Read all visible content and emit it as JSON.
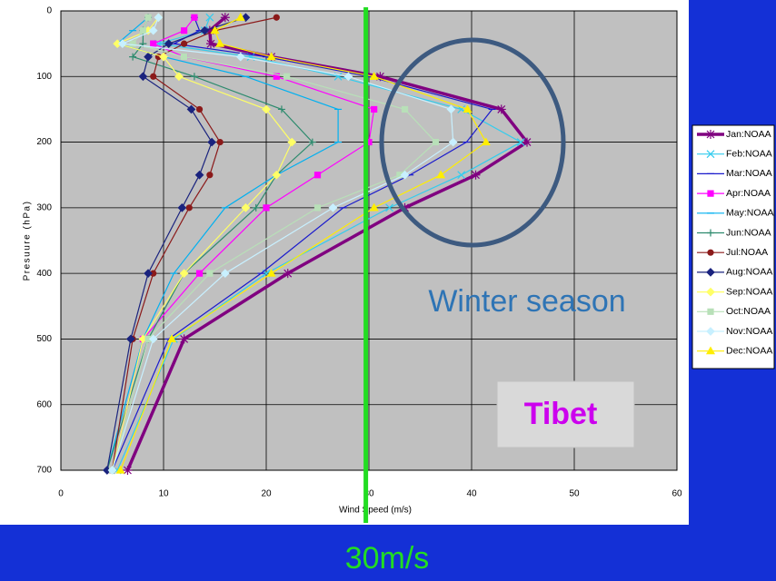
{
  "chart_data": {
    "type": "line",
    "x_label": "Wind Speed (m/s)",
    "y_label": "Presuure (hPa)",
    "xlim": [
      0,
      60
    ],
    "xticks": [
      0,
      10,
      20,
      30,
      40,
      50,
      60
    ],
    "ylim": [
      0,
      700
    ],
    "yticks": [
      0,
      100,
      200,
      300,
      400,
      500,
      600,
      700
    ],
    "y_inverted": true,
    "grid": true,
    "y": [
      10,
      30,
      50,
      70,
      100,
      150,
      200,
      250,
      300,
      400,
      500,
      700
    ],
    "series": [
      {
        "name": "Jan:NOAA",
        "color": "#800080",
        "marker": "asterisk",
        "width": 3.5,
        "values": [
          16,
          14.5,
          14.6,
          20.5,
          31.1,
          42.9,
          45.4,
          40.4,
          33.5,
          22.1,
          12,
          6.5
        ]
      },
      {
        "name": "Feb:NOAA",
        "color": "#33ccee",
        "marker": "x",
        "width": 1.2,
        "values": [
          14.5,
          14,
          9.5,
          18.5,
          27,
          39,
          44.8,
          39,
          32,
          20,
          11,
          5.5
        ]
      },
      {
        "name": "Mar:NOAA",
        "color": "#1a1acc",
        "marker": "dash",
        "width": 1.2,
        "values": [
          13,
          13.5,
          11,
          20,
          30,
          42,
          39.5,
          34,
          27.5,
          19.5,
          10.5,
          5
        ]
      },
      {
        "name": "Apr:NOAA",
        "color": "#ff00ff",
        "marker": "square",
        "width": 1.2,
        "values": [
          13,
          12,
          9,
          12,
          21,
          30.5,
          30,
          25,
          20,
          13.5,
          8,
          5
        ]
      },
      {
        "name": "May:NOAA",
        "color": "#00b0f0",
        "marker": "dash",
        "width": 1.2,
        "values": [
          8.5,
          7,
          5.5,
          10,
          18,
          27,
          27,
          21,
          16,
          11,
          8,
          4.5
        ]
      },
      {
        "name": "Jun:NOAA",
        "color": "#2e8b6e",
        "marker": "plus",
        "width": 1.2,
        "values": [
          8.5,
          8,
          8,
          7,
          13,
          21.5,
          24.5,
          21,
          19,
          12,
          8.5,
          4.5
        ]
      },
      {
        "name": "Jul:NOAA",
        "color": "#8b1a1a",
        "marker": "circle",
        "width": 1.2,
        "values": [
          21,
          15,
          12,
          9.5,
          9,
          13.5,
          15.5,
          14.5,
          12.5,
          9,
          7,
          5
        ]
      },
      {
        "name": "Aug:NOAA",
        "color": "#1a237e",
        "marker": "diamond",
        "width": 1.2,
        "values": [
          18,
          14,
          10.5,
          8.5,
          8,
          12.7,
          14.7,
          13.5,
          11.8,
          8.5,
          6.8,
          4.5
        ]
      },
      {
        "name": "Sep:NOAA",
        "color": "#ffff66",
        "marker": "diamond",
        "width": 1.2,
        "values": [
          9.5,
          8.5,
          5.5,
          10,
          11.5,
          20,
          22.5,
          21,
          18,
          12,
          8,
          5
        ]
      },
      {
        "name": "Oct:NOAA",
        "color": "#b8e0b8",
        "marker": "square",
        "width": 1.2,
        "values": [
          8.5,
          8,
          7,
          12,
          22,
          33.5,
          36.5,
          33,
          25,
          14.5,
          8.5,
          5
        ]
      },
      {
        "name": "Nov:NOAA",
        "color": "#c8f0ff",
        "marker": "diamond",
        "width": 1.2,
        "values": [
          9.5,
          9,
          6,
          17.5,
          28,
          38,
          38.2,
          33.5,
          26.5,
          16,
          9,
          5
        ]
      },
      {
        "name": "Dec:NOAA",
        "color": "#ffee00",
        "marker": "triangle",
        "width": 1.2,
        "values": [
          17.5,
          15,
          15.5,
          20.5,
          30.5,
          39.6,
          41.4,
          37,
          30.5,
          20.5,
          10.8,
          5.8
        ]
      }
    ],
    "reference_line_x": 29.7,
    "reference_color": "#22dd22",
    "annotations": [
      "Winter season",
      "Tibet",
      "30m/s"
    ]
  }
}
